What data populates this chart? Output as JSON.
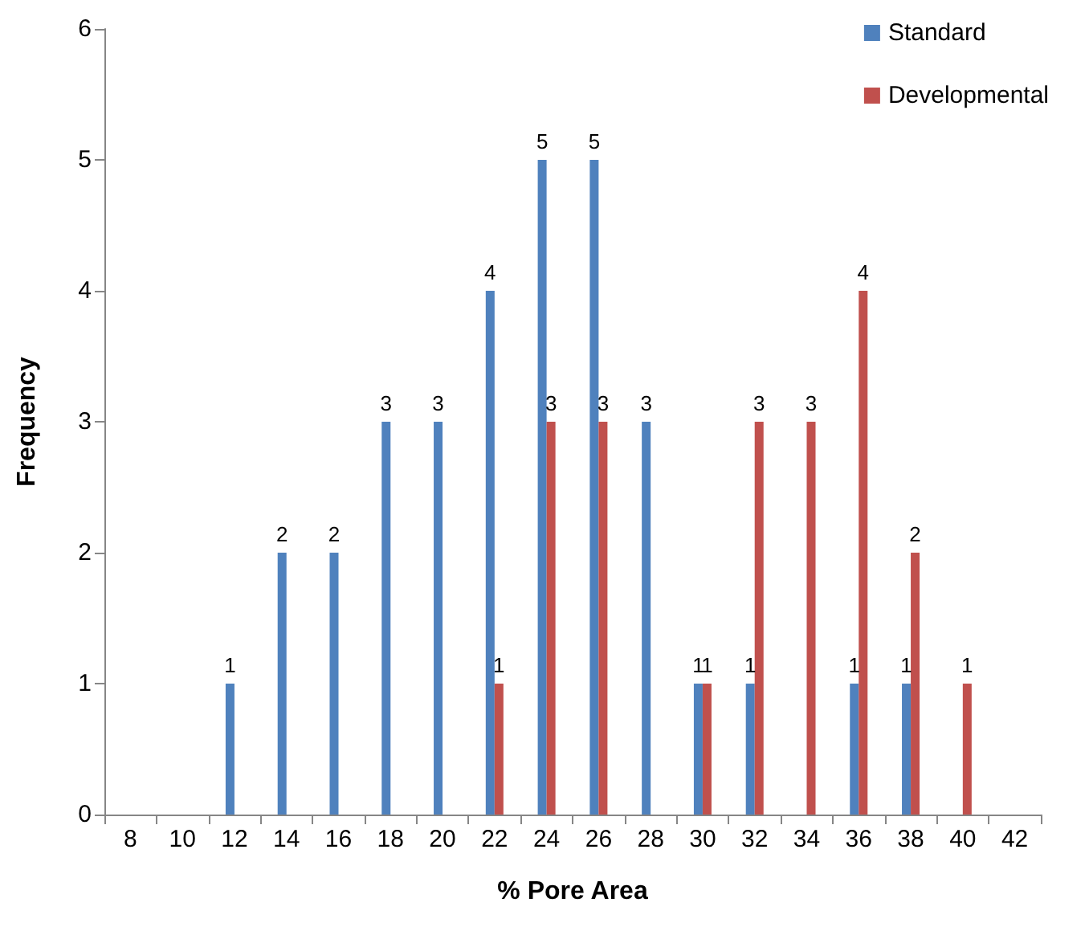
{
  "chart_data": {
    "type": "bar",
    "xlabel": "% Pore Area",
    "ylabel": "Frequency",
    "categories": [
      "8",
      "10",
      "12",
      "14",
      "16",
      "18",
      "20",
      "22",
      "24",
      "26",
      "28",
      "30",
      "32",
      "34",
      "36",
      "38",
      "40",
      "42"
    ],
    "series": [
      {
        "name": "Standard",
        "color": "#4f81bd",
        "values": [
          0,
          0,
          1,
          2,
          2,
          3,
          3,
          4,
          5,
          5,
          3,
          1,
          1,
          0,
          1,
          1,
          0,
          0
        ],
        "value_labels": [
          null,
          null,
          "1",
          "2",
          "2",
          "3",
          "3",
          "4",
          "5",
          "5",
          "3",
          "1",
          "1",
          null,
          "1",
          "1",
          null,
          null
        ]
      },
      {
        "name": "Developmental",
        "color": "#c0504d",
        "values": [
          0,
          0,
          0,
          0,
          0,
          0,
          0,
          1,
          3,
          3,
          0,
          1,
          3,
          3,
          4,
          2,
          1,
          0
        ],
        "value_labels": [
          null,
          null,
          null,
          null,
          null,
          null,
          null,
          "1",
          "3",
          "3",
          null,
          "1",
          "3",
          "3",
          "4",
          "2",
          "1",
          null
        ]
      }
    ],
    "ylim": [
      0,
      6
    ],
    "yticks": [
      0,
      1,
      2,
      3,
      4,
      5,
      6
    ],
    "grid": false,
    "legend": "top right"
  }
}
